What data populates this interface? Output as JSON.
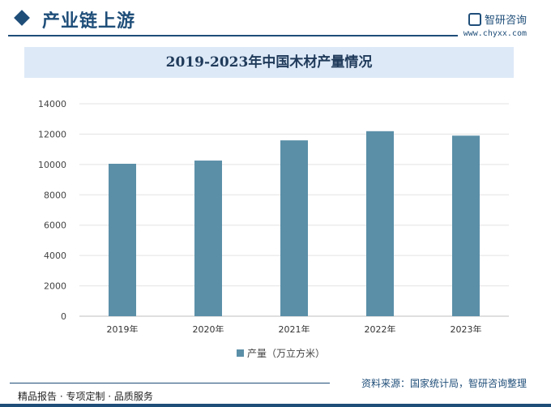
{
  "header": {
    "section_title": "产业链上游",
    "brand_name": "智研咨询",
    "site": "www.chyxx.com"
  },
  "chart_data": {
    "type": "bar",
    "title": "2019-2023年中国木材产量情况",
    "categories": [
      "2019年",
      "2020年",
      "2021年",
      "2022年",
      "2023年"
    ],
    "series": [
      {
        "name": "产量（万立方米）",
        "values": [
          10046,
          10257,
          11589,
          12194,
          11900
        ]
      }
    ],
    "ylim": [
      0,
      14000
    ],
    "yticks": [
      0,
      2000,
      4000,
      6000,
      8000,
      10000,
      12000,
      14000
    ],
    "grid": true,
    "legend_position": "bottom",
    "bar_color": "#5b8fa8"
  },
  "footer": {
    "left": "精品报告 · 专项定制 · 品质服务",
    "source": "资料来源：国家统计局，智研咨询整理"
  },
  "watermark": "智研咨询"
}
